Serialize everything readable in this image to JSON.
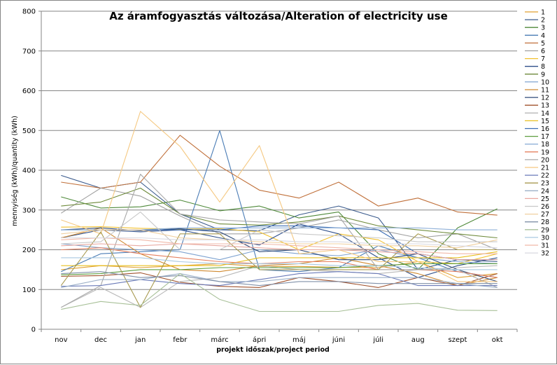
{
  "chart_data": {
    "type": "line",
    "title": "Az áramfogyasztás változása/Alteration of electricity use",
    "xlabel": "projekt időszak/project period",
    "ylabel": "mennyiség (kWh)/quantity (kWh)",
    "ylim": [
      0,
      800
    ],
    "yticks": [
      0,
      100,
      200,
      300,
      400,
      500,
      600,
      700,
      800
    ],
    "grid": true,
    "legend_position": "right",
    "categories": [
      "nov",
      "dec",
      "jan",
      "febr",
      "márc",
      "ápri",
      "máj",
      "júni",
      "júli",
      "aug",
      "szept",
      "okt"
    ],
    "series": [
      {
        "name": "1",
        "color": "#E0A030",
        "values": [
          150,
          160,
          155,
          160,
          165,
          158,
          158,
          156,
          155,
          170,
          130,
          140
        ]
      },
      {
        "name": "2",
        "color": "#3A5A8C",
        "values": [
          387,
          355,
          370,
          290,
          250,
          248,
          288,
          310,
          280,
          150,
          175,
          170
        ]
      },
      {
        "name": "3",
        "color": "#4F8A3A",
        "values": [
          333,
          305,
          308,
          325,
          298,
          310,
          280,
          295,
          190,
          150,
          255,
          303
        ]
      },
      {
        "name": "4",
        "color": "#4A7CB5",
        "values": [
          145,
          190,
          195,
          200,
          500,
          150,
          145,
          155,
          210,
          180,
          145,
          130
        ]
      },
      {
        "name": "5",
        "color": "#C0703A",
        "values": [
          370,
          355,
          370,
          488,
          410,
          350,
          330,
          370,
          310,
          330,
          295,
          287
        ]
      },
      {
        "name": "6",
        "color": "#A0A0A0",
        "values": [
          292,
          355,
          335,
          285,
          240,
          240,
          255,
          275,
          250,
          230,
          240,
          200
        ]
      },
      {
        "name": "7",
        "color": "#F2C130",
        "values": [
          257,
          258,
          254,
          252,
          253,
          245,
          200,
          240,
          225,
          170,
          165,
          190
        ]
      },
      {
        "name": "8",
        "color": "#2F4F8A",
        "values": [
          230,
          250,
          245,
          250,
          230,
          212,
          265,
          240,
          180,
          130,
          160,
          180
        ]
      },
      {
        "name": "9",
        "color": "#6E8A3A",
        "values": [
          310,
          320,
          355,
          290,
          265,
          262,
          270,
          285,
          260,
          250,
          240,
          230
        ]
      },
      {
        "name": "10",
        "color": "#7FA3D0",
        "values": [
          215,
          205,
          200,
          195,
          175,
          200,
          190,
          185,
          200,
          180,
          170,
          165
        ]
      },
      {
        "name": "11",
        "color": "#D08A30",
        "values": [
          230,
          255,
          190,
          150,
          145,
          160,
          165,
          180,
          160,
          140,
          110,
          130
        ]
      },
      {
        "name": "12",
        "color": "#2E4A78",
        "values": [
          250,
          255,
          248,
          253,
          245,
          195,
          200,
          175,
          175,
          190,
          150,
          120
        ]
      },
      {
        "name": "13",
        "color": "#A0522D",
        "values": [
          133,
          135,
          142,
          118,
          108,
          105,
          130,
          120,
          105,
          130,
          110,
          140
        ]
      },
      {
        "name": "14",
        "color": "#B8B8B8",
        "values": [
          55,
          105,
          55,
          120,
          130,
          160,
          150,
          145,
          140,
          150,
          155,
          160
        ]
      },
      {
        "name": "15",
        "color": "#E8C020",
        "values": [
          160,
          160,
          160,
          160,
          160,
          180,
          180,
          180,
          180,
          180,
          180,
          195
        ]
      },
      {
        "name": "16",
        "color": "#3C6EB4",
        "values": [
          250,
          250,
          250,
          250,
          250,
          260,
          260,
          255,
          250,
          190,
          175,
          175
        ]
      },
      {
        "name": "17",
        "color": "#5E9E40",
        "values": [
          137,
          140,
          150,
          150,
          155,
          155,
          155,
          155,
          160,
          165,
          165,
          165
        ]
      },
      {
        "name": "18",
        "color": "#8FB0D8",
        "values": [
          250,
          250,
          250,
          255,
          255,
          255,
          255,
          255,
          255,
          255,
          250,
          250
        ]
      },
      {
        "name": "19",
        "color": "#E58060",
        "values": [
          200,
          205,
          190,
          180,
          170,
          165,
          170,
          170,
          150,
          150,
          145,
          130
        ]
      },
      {
        "name": "20",
        "color": "#A8A8A8",
        "values": [
          55,
          110,
          390,
          290,
          275,
          270,
          265,
          285,
          150,
          150,
          150,
          105
        ]
      },
      {
        "name": "21",
        "color": "#F5C880",
        "values": [
          275,
          240,
          548,
          460,
          320,
          462,
          190,
          200,
          170,
          170,
          120,
          120
        ]
      },
      {
        "name": "22",
        "color": "#6A7AB8",
        "values": [
          108,
          110,
          125,
          115,
          110,
          125,
          140,
          145,
          140,
          110,
          110,
          110
        ]
      },
      {
        "name": "23",
        "color": "#A89A50",
        "values": [
          110,
          245,
          55,
          240,
          240,
          150,
          150,
          150,
          150,
          240,
          200,
          200
        ]
      },
      {
        "name": "24",
        "color": "#9CB0C8",
        "values": [
          105,
          125,
          125,
          140,
          120,
          120,
          130,
          130,
          130,
          130,
          115,
          105
        ]
      },
      {
        "name": "25",
        "color": "#E8A8A0",
        "values": [
          210,
          215,
          210,
          215,
          210,
          205,
          200,
          200,
          195,
          190,
          175,
          175
        ]
      },
      {
        "name": "26",
        "color": "#C8C8C8",
        "values": [
          215,
          220,
          295,
          200,
          200,
          250,
          240,
          235,
          230,
          220,
          220,
          220
        ]
      },
      {
        "name": "27",
        "color": "#F0D0A0",
        "values": [
          240,
          250,
          250,
          230,
          225,
          220,
          215,
          215,
          210,
          210,
          205,
          225
        ]
      },
      {
        "name": "28",
        "color": "#8090A8",
        "values": [
          140,
          145,
          130,
          135,
          120,
          110,
          120,
          120,
          115,
          115,
          115,
          115
        ]
      },
      {
        "name": "29",
        "color": "#A8C098",
        "values": [
          50,
          70,
          60,
          140,
          75,
          45,
          45,
          45,
          60,
          65,
          48,
          47
        ]
      },
      {
        "name": "30",
        "color": "#A8C8E0",
        "values": [
          180,
          180,
          180,
          170,
          165,
          165,
          165,
          160,
          160,
          155,
          150,
          150
        ]
      },
      {
        "name": "31",
        "color": "#F0B8A8",
        "values": [
          225,
          230,
          225,
          215,
          215,
          215,
          210,
          205,
          200,
          195,
          190,
          190
        ]
      },
      {
        "name": "32",
        "color": "#D8D8E0",
        "values": [
          230,
          230,
          230,
          225,
          225,
          225,
          220,
          220,
          215,
          215,
          210,
          205
        ]
      }
    ]
  }
}
